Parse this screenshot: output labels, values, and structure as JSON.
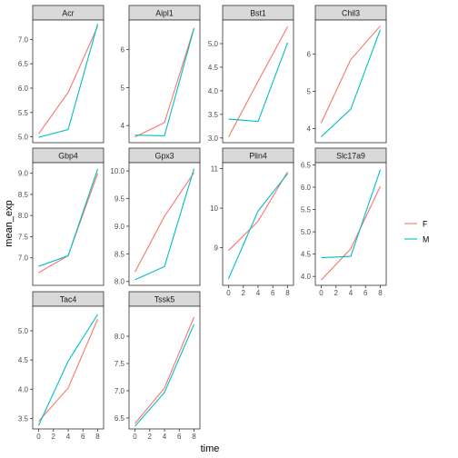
{
  "chart_data": {
    "type": "line",
    "xlabel": "time",
    "ylabel": "mean_exp",
    "x": [
      0,
      4,
      8
    ],
    "x_ticks": [
      0,
      2,
      4,
      6,
      8
    ],
    "xlim": [
      -0.8,
      8.8
    ],
    "legend": {
      "placement": "right",
      "title": "",
      "entries": [
        {
          "name": "F",
          "color": "#F8766D"
        },
        {
          "name": "M",
          "color": "#00BFC4"
        }
      ]
    },
    "facets": [
      {
        "name": "Acr",
        "ylim": [
          4.88,
          7.4
        ],
        "yticks": [
          5.0,
          5.5,
          6.0,
          6.5,
          7.0
        ],
        "decimals": 1,
        "series": [
          {
            "name": "F",
            "values": [
              5.06,
              5.91,
              7.27
            ]
          },
          {
            "name": "M",
            "values": [
              4.99,
              5.15,
              7.32
            ]
          }
        ]
      },
      {
        "name": "Aipl1",
        "ylim": [
          3.55,
          6.78
        ],
        "yticks": [
          4,
          5,
          6
        ],
        "decimals": 0,
        "series": [
          {
            "name": "F",
            "values": [
              3.7,
              4.08,
              6.57
            ]
          },
          {
            "name": "M",
            "values": [
              3.75,
              3.73,
              6.56
            ]
          }
        ]
      },
      {
        "name": "Bst1",
        "ylim": [
          2.9,
          5.5
        ],
        "yticks": [
          3.0,
          3.5,
          4.0,
          4.5,
          5.0
        ],
        "decimals": 1,
        "series": [
          {
            "name": "F",
            "values": [
              3.02,
              4.2,
              5.36
            ]
          },
          {
            "name": "M",
            "values": [
              3.4,
              3.35,
              5.02
            ]
          }
        ]
      },
      {
        "name": "Chil3",
        "ylim": [
          3.62,
          6.91
        ],
        "yticks": [
          4,
          5,
          6
        ],
        "decimals": 0,
        "series": [
          {
            "name": "F",
            "values": [
              4.15,
              5.85,
              6.75
            ]
          },
          {
            "name": "M",
            "values": [
              3.78,
              4.52,
              6.65
            ]
          }
        ]
      },
      {
        "name": "Gbp4",
        "ylim": [
          6.35,
          9.25
        ],
        "yticks": [
          7.0,
          7.5,
          8.0,
          8.5,
          9.0
        ],
        "decimals": 1,
        "series": [
          {
            "name": "F",
            "values": [
              6.65,
              7.05,
              9.0
            ]
          },
          {
            "name": "M",
            "values": [
              6.8,
              7.05,
              9.1
            ]
          }
        ]
      },
      {
        "name": "Gpx3",
        "ylim": [
          7.93,
          10.15
        ],
        "yticks": [
          8.0,
          8.5,
          9.0,
          9.5,
          10.0
        ],
        "decimals": 1,
        "series": [
          {
            "name": "F",
            "values": [
              8.17,
              9.18,
              9.97
            ]
          },
          {
            "name": "M",
            "values": [
              8.03,
              8.27,
              10.04
            ]
          }
        ]
      },
      {
        "name": "Plin4",
        "ylim": [
          8.05,
          11.15
        ],
        "yticks": [
          9,
          10,
          11
        ],
        "decimals": 0,
        "series": [
          {
            "name": "F",
            "values": [
              8.93,
              9.67,
              10.92
            ]
          },
          {
            "name": "M",
            "values": [
              8.22,
              9.93,
              10.87
            ]
          }
        ]
      },
      {
        "name": "Slc17a9",
        "ylim": [
          3.8,
          6.55
        ],
        "yticks": [
          4.0,
          4.5,
          5.0,
          5.5,
          6.0,
          6.5
        ],
        "decimals": 1,
        "series": [
          {
            "name": "F",
            "values": [
              3.92,
              4.62,
              6.02
            ]
          },
          {
            "name": "M",
            "values": [
              4.42,
              4.45,
              6.39
            ]
          }
        ]
      },
      {
        "name": "Tac4",
        "ylim": [
          3.32,
          5.42
        ],
        "yticks": [
          3.5,
          4.0,
          4.5,
          5.0
        ],
        "decimals": 1,
        "series": [
          {
            "name": "F",
            "values": [
              3.45,
              4.02,
              5.2
            ]
          },
          {
            "name": "M",
            "values": [
              3.38,
              4.48,
              5.28
            ]
          }
        ]
      },
      {
        "name": "Tssk5",
        "ylim": [
          6.3,
          8.55
        ],
        "yticks": [
          6.5,
          7.0,
          7.5,
          8.0
        ],
        "decimals": 1,
        "series": [
          {
            "name": "F",
            "values": [
              6.4,
              7.05,
              8.35
            ]
          },
          {
            "name": "M",
            "values": [
              6.35,
              6.97,
              8.22
            ]
          }
        ]
      }
    ]
  }
}
